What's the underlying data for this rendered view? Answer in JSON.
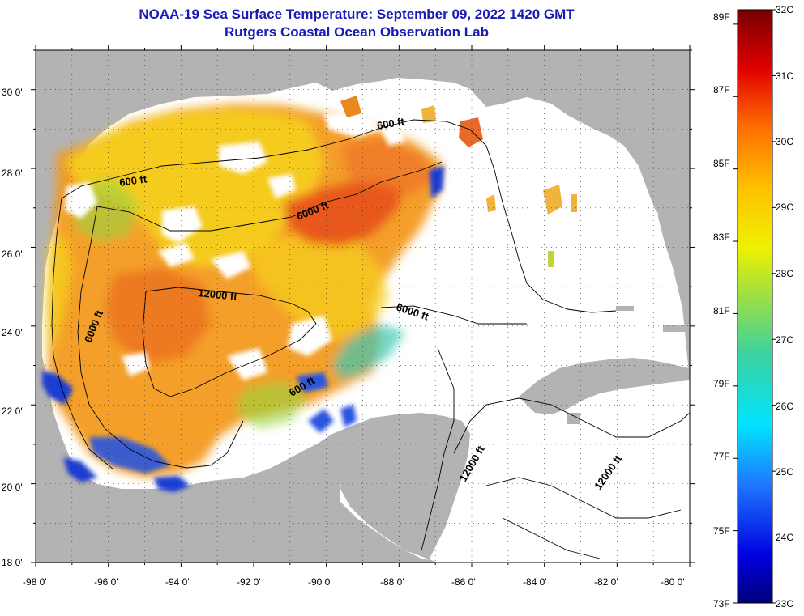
{
  "title_line1": "NOAA-19 Sea Surface Temperature:  September 09, 2022 1420 GMT",
  "title_line2": "Rutgers Coastal Ocean Observation Lab",
  "lat_ticks": [
    "30 0'",
    "28 0'",
    "26 0'",
    "24 0'",
    "22 0'",
    "20 0'",
    "18 0'"
  ],
  "lon_ticks": [
    "-98 0'",
    "-96 0'",
    "-94 0'",
    "-92 0'",
    "-90 0'",
    "-88 0'",
    "-86 0'",
    "-84 0'",
    "-82 0'",
    "-80 0'"
  ],
  "contour_labels": [
    "600 ft",
    "600 ft",
    "6000 ft",
    "12000 ft",
    "6000 ft",
    "6000 ft",
    "600 ft",
    "12000 ft",
    "12000 ft"
  ],
  "colorbar": {
    "fahrenheit": [
      "89F",
      "87F",
      "85F",
      "83F",
      "81F",
      "79F",
      "77F",
      "75F",
      "73F"
    ],
    "celsius": [
      "32C",
      "31C",
      "30C",
      "29C",
      "28C",
      "27C",
      "26C",
      "25C",
      "24C",
      "23C"
    ]
  },
  "colors": {
    "land": "#b3b3b3",
    "title": "#1a1ab4",
    "warm": "#f29a1e",
    "hot": "#e8561a",
    "mild": "#f5d21e",
    "cool": "#1e3cd2"
  }
}
